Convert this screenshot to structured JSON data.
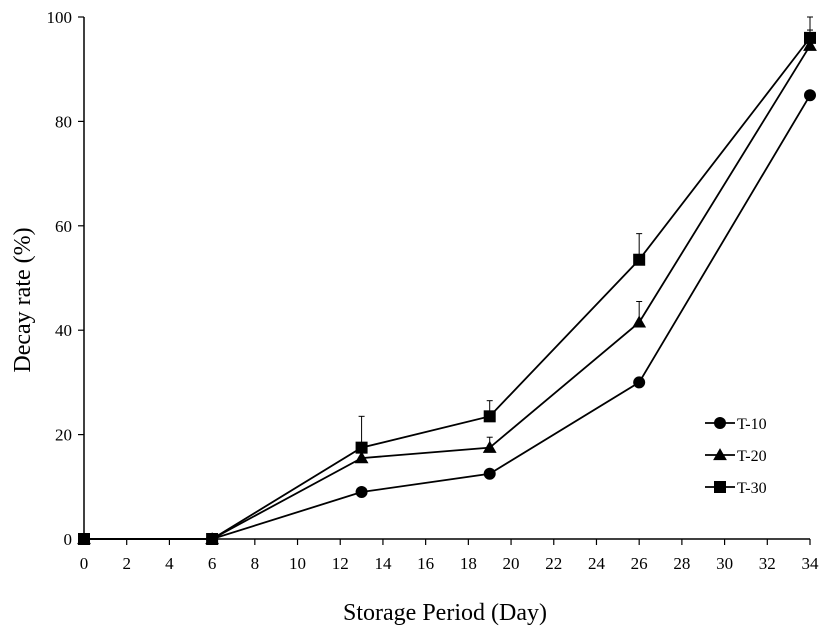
{
  "chart_data": {
    "type": "line",
    "title": "",
    "xlabel": "Storage Period (Day)",
    "ylabel": "Decay rate (%)",
    "xlim": [
      0,
      34
    ],
    "ylim": [
      0,
      100
    ],
    "xticks": [
      0,
      2,
      4,
      6,
      8,
      10,
      12,
      14,
      16,
      18,
      20,
      22,
      24,
      26,
      28,
      30,
      32,
      34
    ],
    "yticks": [
      0,
      20,
      40,
      60,
      80,
      100
    ],
    "grid": false,
    "legend_position": "right",
    "x": [
      0,
      6,
      13,
      19,
      26,
      34
    ],
    "series": [
      {
        "name": "T-10",
        "marker": "circle",
        "values": [
          0,
          0,
          9,
          12.5,
          30,
          85
        ],
        "errors": [
          0,
          0,
          0,
          0,
          0,
          0
        ]
      },
      {
        "name": "T-20",
        "marker": "triangle",
        "values": [
          0,
          0,
          15.5,
          17.5,
          41.5,
          94.5
        ],
        "errors": [
          0,
          0,
          0,
          2,
          4,
          3
        ]
      },
      {
        "name": "T-30",
        "marker": "square",
        "values": [
          0,
          0,
          17.5,
          23.5,
          53.5,
          96
        ],
        "errors": [
          0,
          0,
          6,
          3,
          5,
          4
        ]
      }
    ],
    "colors": {
      "line": "#000000",
      "marker": "#000000",
      "axis": "#000000"
    }
  }
}
